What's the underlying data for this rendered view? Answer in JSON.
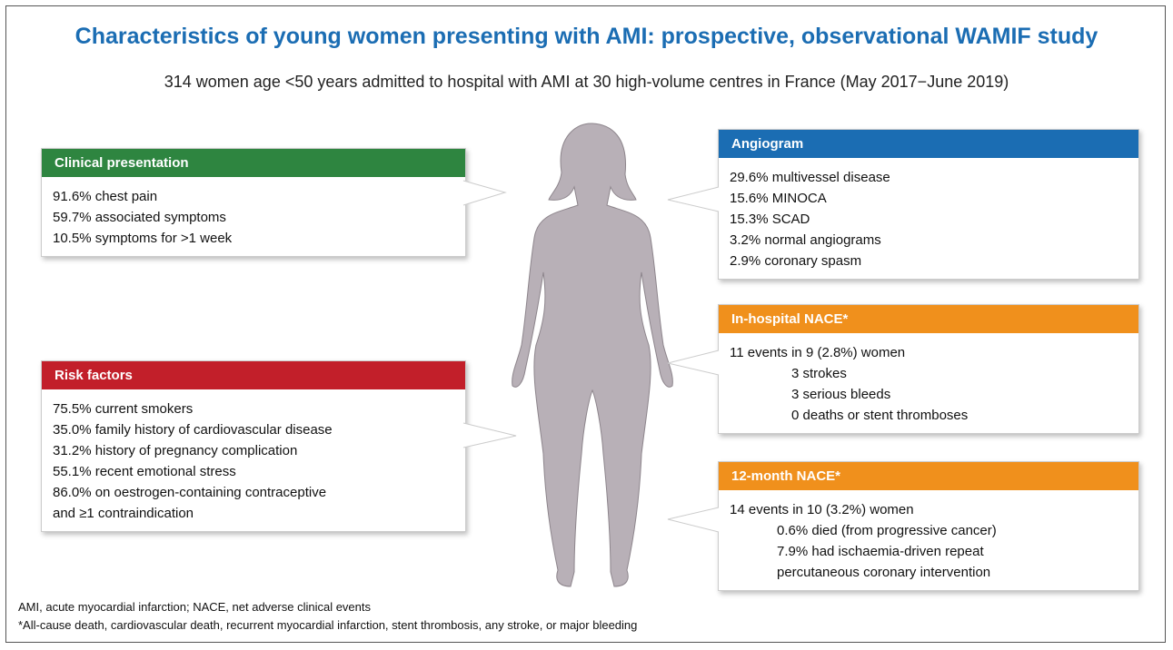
{
  "title": "Characteristics of young women presenting with AMI: prospective, observational WAMIF study",
  "subtitle": "314 women age <50 years admitted to hospital with AMI at 30 high-volume centres in France (May 2017−June 2019)",
  "panels": [
    {
      "header": "Clinical presentation",
      "color": "#2e8540",
      "lines": [
        "91.6% chest pain",
        "59.7% associated symptoms",
        "10.5% symptoms for >1 week"
      ]
    },
    {
      "header": "Risk factors",
      "color": "#c21f2a",
      "lines": [
        "75.5% current smokers",
        "35.0% family history of cardiovascular disease",
        "31.2% history of pregnancy complication",
        "55.1% recent emotional stress",
        "86.0% on oestrogen-containing contraceptive",
        "and ≥1 contraindication"
      ]
    },
    {
      "header": "Angiogram",
      "color": "#1b6db3",
      "lines": [
        "29.6% multivessel disease",
        "15.6% MINOCA",
        "15.3% SCAD",
        "3.2% normal angiograms",
        "2.9% coronary spasm"
      ]
    },
    {
      "header": "In-hospital NACE*",
      "color": "#f0901c",
      "lines": [
        "11 events in 9 (2.8%) women"
      ],
      "details": [
        "3 strokes",
        "3 serious bleeds",
        "0 deaths or stent thromboses"
      ]
    },
    {
      "header": "12-month NACE*",
      "color": "#f0901c",
      "lines": [
        "14 events in 10 (3.2%) women"
      ],
      "details": [
        "0.6% died (from progressive cancer)",
        "7.9% had ischaemia-driven repeat",
        "percutaneous coronary intervention"
      ]
    }
  ],
  "footnotes": [
    "AMI, acute myocardial infarction; NACE, net adverse clinical events",
    "*All-cause death, cardiovascular death, recurrent myocardial infarction, stent thrombosis, any stroke, or major bleeding"
  ]
}
